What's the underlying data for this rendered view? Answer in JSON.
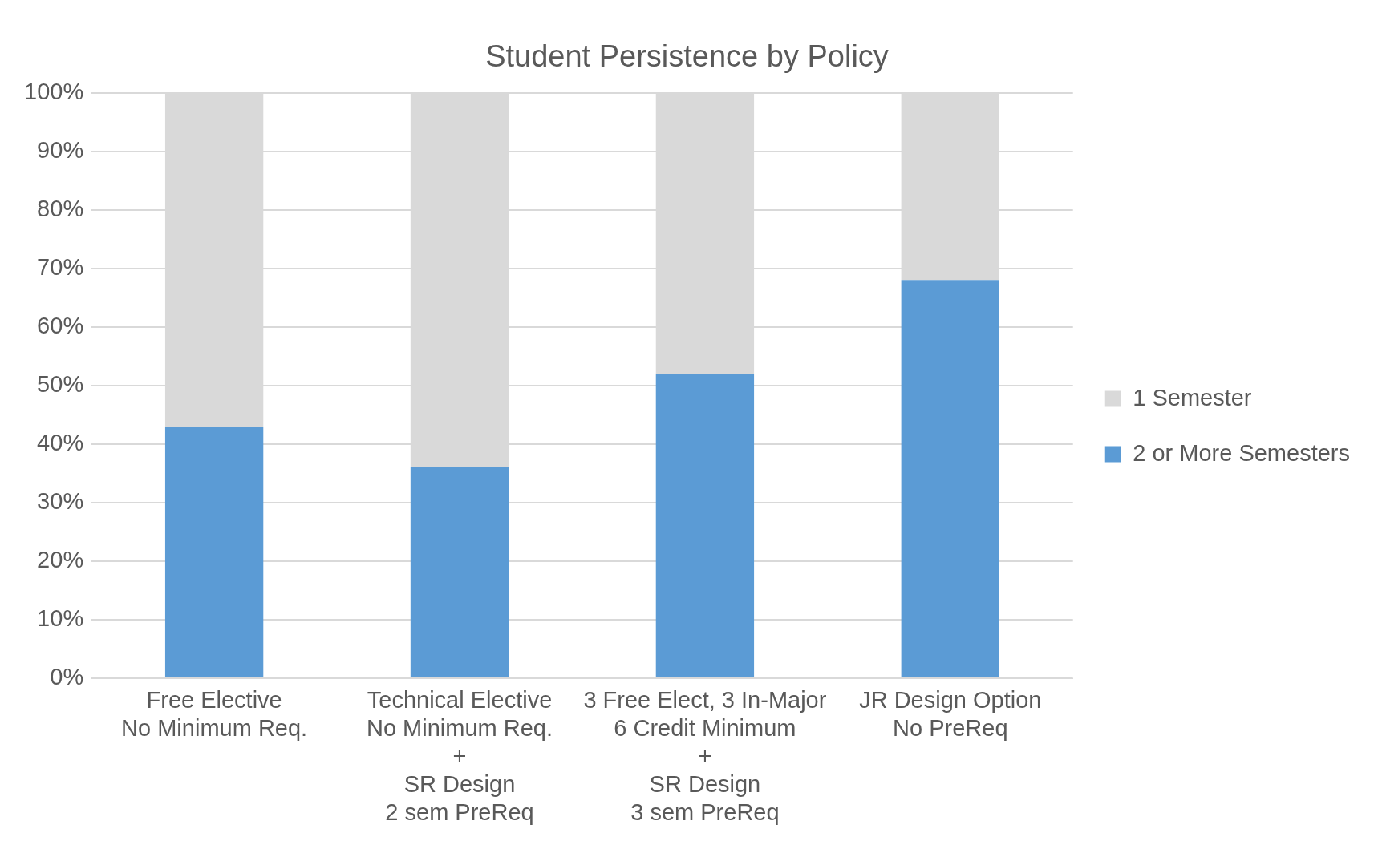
{
  "chart_data": {
    "type": "bar",
    "title": "Student Persistence by Policy",
    "categories": [
      "Free Elective\nNo Minimum Req.",
      "Technical Elective\nNo Minimum Req.\n+\nSR Design\n2 sem PreReq",
      "3 Free Elect, 3 In-Major\n6 Credit Minimum\n+\nSR Design\n3 sem PreReq",
      "JR Design Option\nNo PreReq"
    ],
    "stacked": true,
    "series": [
      {
        "name": "2 or More Semesters",
        "color": "#5b9bd5",
        "values": [
          43,
          36,
          52,
          68
        ]
      },
      {
        "name": "1 Semester",
        "color": "#d9d9d9",
        "values": [
          57,
          64,
          48,
          32
        ]
      }
    ],
    "ylim": [
      0,
      100
    ],
    "yticks": [
      {
        "value": 0,
        "label": "0%"
      },
      {
        "value": 10,
        "label": "10%"
      },
      {
        "value": 20,
        "label": "20%"
      },
      {
        "value": 30,
        "label": "30%"
      },
      {
        "value": 40,
        "label": "40%"
      },
      {
        "value": 50,
        "label": "50%"
      },
      {
        "value": 60,
        "label": "60%"
      },
      {
        "value": 70,
        "label": "70%"
      },
      {
        "value": 80,
        "label": "80%"
      },
      {
        "value": 90,
        "label": "90%"
      },
      {
        "value": 100,
        "label": "100%"
      }
    ],
    "grid": "y",
    "legend": "right"
  }
}
